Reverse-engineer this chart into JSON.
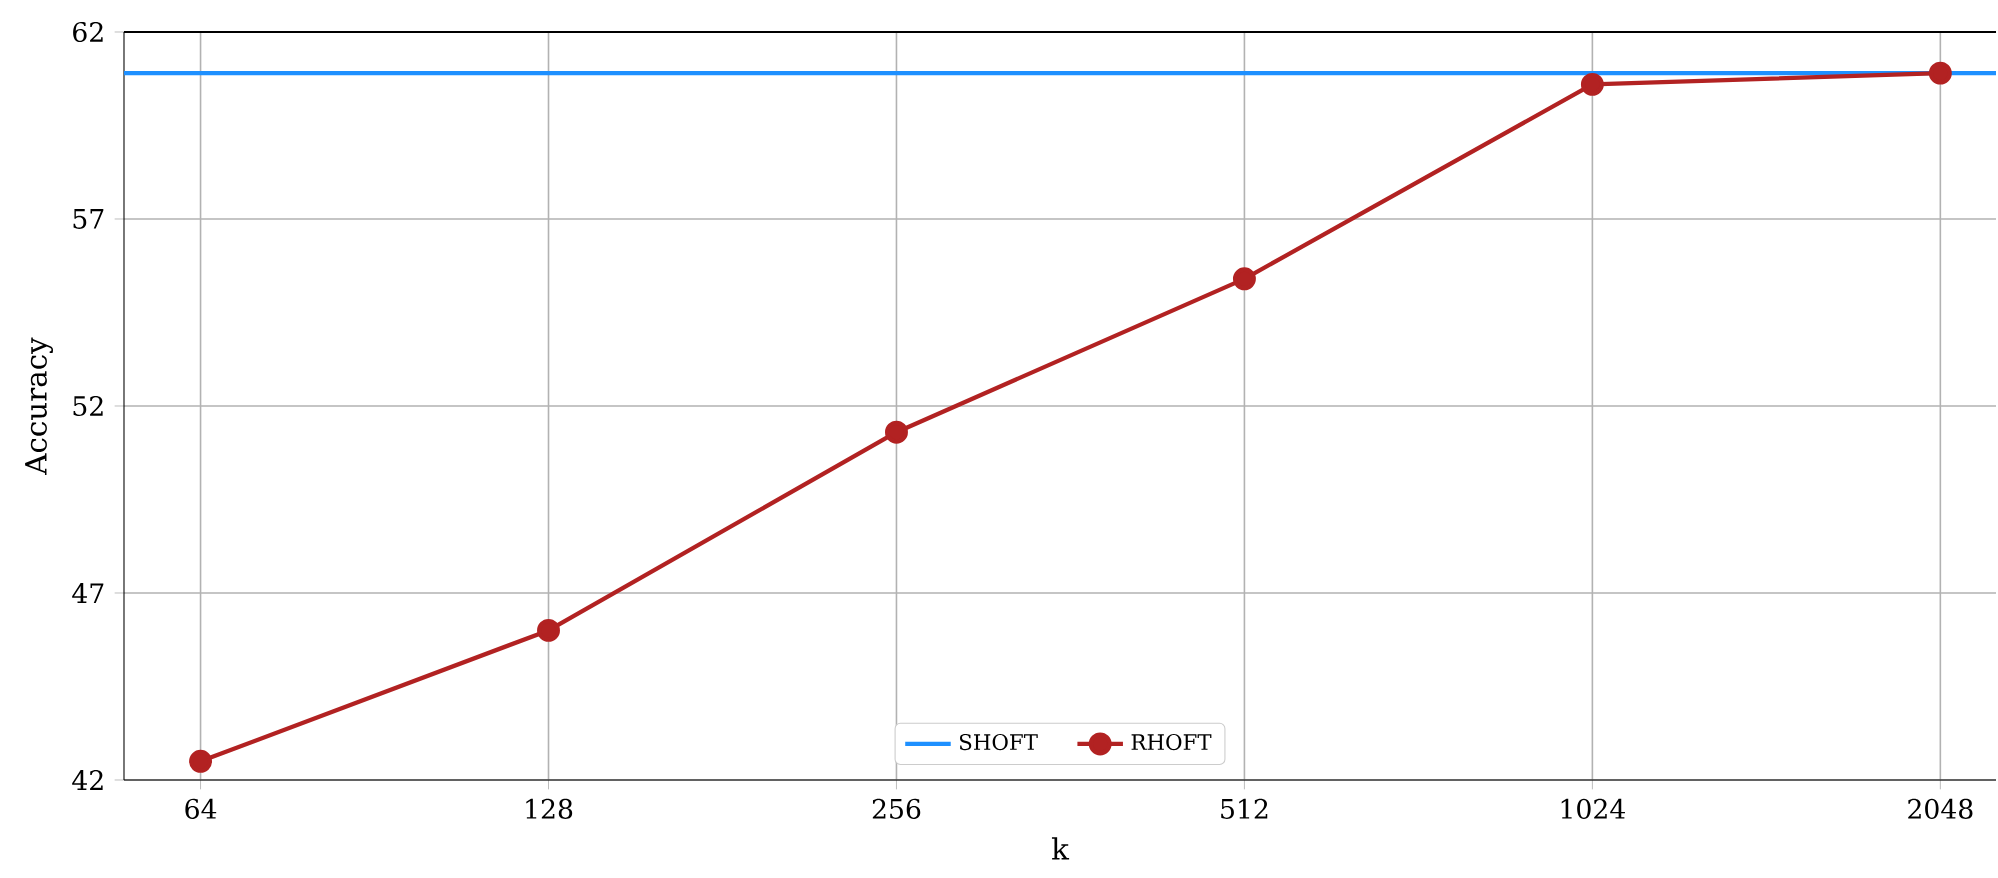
{
  "chart_data": {
    "type": "line",
    "xlabel": "k",
    "ylabel": "Accuracy",
    "categories": [
      "64",
      "128",
      "256",
      "512",
      "1024",
      "2048"
    ],
    "series": [
      {
        "name": "RHOFT",
        "color": "#b22222",
        "values": [
          42.5,
          46.0,
          51.3,
          55.4,
          60.6,
          60.9
        ]
      }
    ],
    "ref_lines": [
      {
        "axis": "y",
        "value": 60.9,
        "label": "SHOFT",
        "color": "#1e90ff"
      }
    ],
    "ylim": [
      42,
      62
    ],
    "yticks": [
      42,
      47,
      52,
      57,
      62
    ],
    "grid": true,
    "legend": "bottom",
    "marker": "circle",
    "line_style": "solid"
  }
}
